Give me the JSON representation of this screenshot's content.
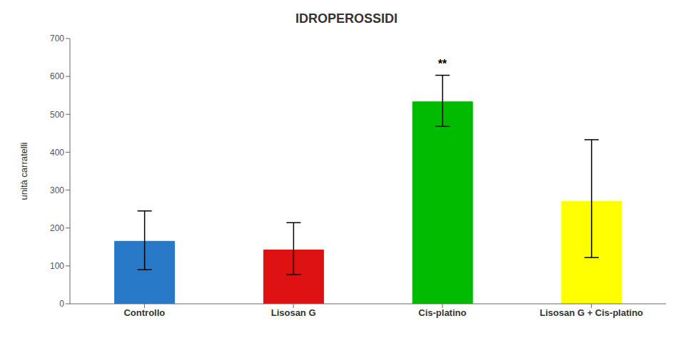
{
  "chart_data": {
    "type": "bar",
    "title": "IDROPEROSSIDI",
    "ylabel": "unità carratelli",
    "categories": [
      "Controllo",
      "Lisosan G",
      "Cis-platino",
      "Lisosan G + Cis-platino"
    ],
    "values": [
      165,
      142,
      533,
      270
    ],
    "errors_upper": [
      80,
      72,
      70,
      163
    ],
    "errors_lower": [
      75,
      65,
      65,
      148
    ],
    "colors": [
      "#2878c8",
      "#dd1111",
      "#00bb00",
      "#ffff00"
    ],
    "annotation": {
      "text": "**",
      "category": "Cis-platino"
    },
    "ylim": [
      0,
      700
    ],
    "yticks": [
      0,
      100,
      200,
      300,
      400,
      500,
      600,
      700
    ],
    "grid": false
  }
}
